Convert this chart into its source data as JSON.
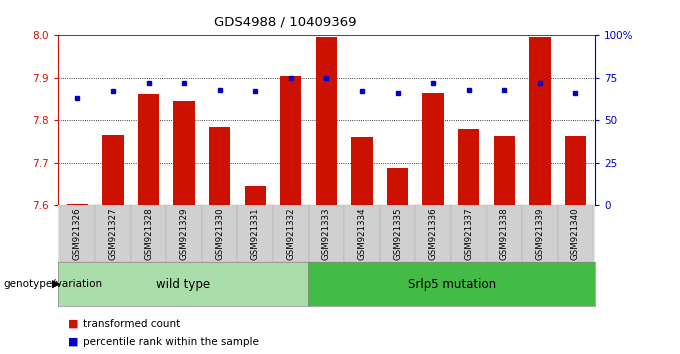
{
  "title": "GDS4988 / 10409369",
  "samples": [
    "GSM921326",
    "GSM921327",
    "GSM921328",
    "GSM921329",
    "GSM921330",
    "GSM921331",
    "GSM921332",
    "GSM921333",
    "GSM921334",
    "GSM921335",
    "GSM921336",
    "GSM921337",
    "GSM921338",
    "GSM921339",
    "GSM921340"
  ],
  "transformed_count": [
    7.603,
    7.765,
    7.863,
    7.845,
    7.785,
    7.645,
    7.905,
    7.997,
    7.76,
    7.688,
    7.865,
    7.78,
    7.763,
    7.997,
    7.763
  ],
  "percentile_rank": [
    63,
    67,
    72,
    72,
    68,
    67,
    75,
    75,
    67,
    66,
    72,
    68,
    68,
    72,
    66
  ],
  "y_min": 7.6,
  "y_max": 8.0,
  "y_ticks": [
    7.6,
    7.7,
    7.8,
    7.9,
    8.0
  ],
  "bar_color": "#cc1100",
  "dot_color": "#0000cc",
  "wild_type_count": 7,
  "mutation_count": 8,
  "wild_type_label": "wild type",
  "mutation_label": "Srlp5 mutation",
  "group_label": "genotype/variation",
  "legend_bar": "transformed count",
  "legend_dot": "percentile rank within the sample",
  "plot_bg": "#ffffff",
  "green_light": "#aaddaa",
  "green_dark": "#44bb44",
  "tick_bg": "#cccccc"
}
